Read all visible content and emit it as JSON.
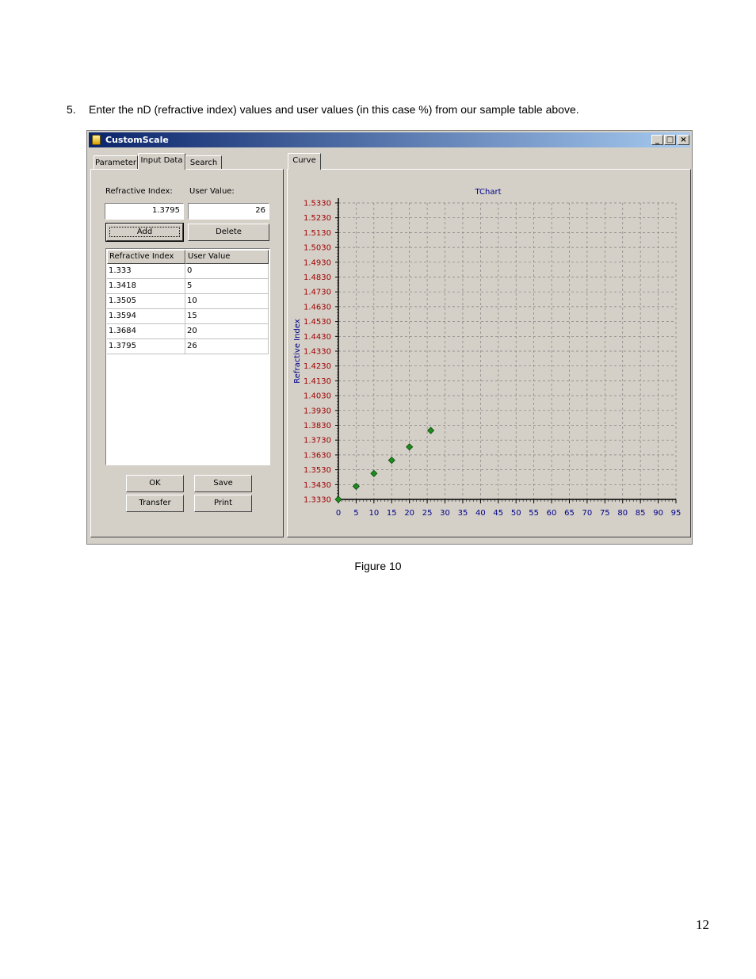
{
  "document": {
    "step_number": "5.",
    "step_text": "Enter the nD (refractive index) values and user values (in this case %) from our sample table above.",
    "caption": "Figure 10",
    "page_number": "12"
  },
  "window": {
    "title": "CustomScale",
    "minimize": "_",
    "maximize": "□",
    "close": "×"
  },
  "left_tabs": [
    {
      "label": "Parameter"
    },
    {
      "label": "Input Data"
    },
    {
      "label": "Search"
    }
  ],
  "right_tabs": [
    {
      "label": "Curve"
    }
  ],
  "input": {
    "ri_label": "Refractive Index:",
    "uv_label": "User Value:",
    "ri_value": "1.3795",
    "uv_value": "26",
    "add_label": "Add",
    "delete_label": "Delete"
  },
  "table": {
    "headers": [
      "Refractive Index",
      "User Value"
    ],
    "rows": [
      [
        "1.333",
        "0"
      ],
      [
        "1.3418",
        "5"
      ],
      [
        "1.3505",
        "10"
      ],
      [
        "1.3594",
        "15"
      ],
      [
        "1.3684",
        "20"
      ],
      [
        "1.3795",
        "26"
      ]
    ]
  },
  "buttons": {
    "ok": "OK",
    "save": "Save",
    "transfer": "Transfer",
    "print": "Print"
  },
  "chart_data": {
    "type": "scatter",
    "title": "TChart",
    "xlabel": "",
    "ylabel": "Refractive Index",
    "xlim": [
      0,
      95
    ],
    "ylim": [
      1.333,
      1.533
    ],
    "x_ticks": [
      "0",
      "5",
      "10",
      "15",
      "20",
      "25",
      "30",
      "35",
      "40",
      "45",
      "50",
      "55",
      "60",
      "65",
      "70",
      "75",
      "80",
      "85",
      "90",
      "95"
    ],
    "y_ticks": [
      "1.5330",
      "1.5230",
      "1.5130",
      "1.5030",
      "1.4930",
      "1.4830",
      "1.4730",
      "1.4630",
      "1.4530",
      "1.4430",
      "1.4330",
      "1.4230",
      "1.4130",
      "1.4030",
      "1.3930",
      "1.3830",
      "1.3730",
      "1.3630",
      "1.3530",
      "1.3430",
      "1.3330"
    ],
    "grid": true,
    "colors": {
      "marker": "#1e8c1e",
      "y_tick": "#a00000",
      "x_tick": "#00008b",
      "title": "#00008b"
    },
    "points": [
      {
        "x": 0,
        "y": 1.333
      },
      {
        "x": 5,
        "y": 1.3418
      },
      {
        "x": 10,
        "y": 1.3505
      },
      {
        "x": 15,
        "y": 1.3594
      },
      {
        "x": 20,
        "y": 1.3684
      },
      {
        "x": 26,
        "y": 1.3795
      }
    ]
  }
}
